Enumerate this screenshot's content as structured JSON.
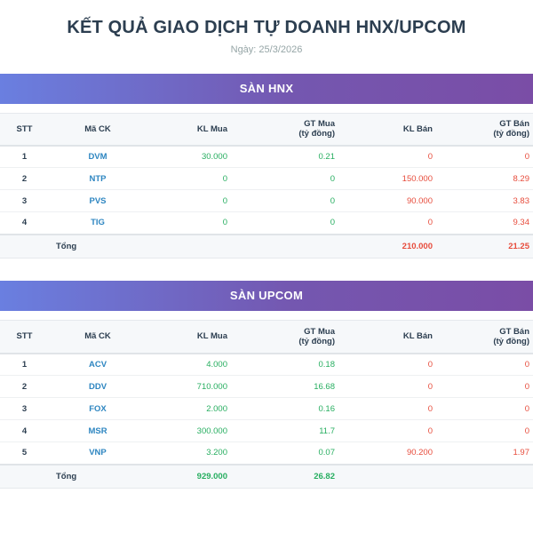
{
  "title": "KẾT QUẢ GIAO DỊCH TỰ DOANH HNX/UPCOM",
  "date": "Ngày: 25/3/2026",
  "columns": {
    "stt": "STT",
    "code": "Mã CK",
    "kl_mua": "KL Mua",
    "gt_mua": "GT Mua\n(tỷ đồng)",
    "kl_ban": "KL Bán",
    "gt_ban": "GT Bán\n(tỷ đồng)"
  },
  "total_label": "Tổng",
  "colors": {
    "buy": "#27ae60",
    "sell": "#e74c3c",
    "code": "#2e86c1",
    "header_start": "#6a7fe0",
    "header_end": "#7a4da6"
  },
  "sections": [
    {
      "name": "SÀN HNX",
      "rows": [
        {
          "stt": "1",
          "code": "DVM",
          "kl_mua": "30.000",
          "gt_mua": "0.21",
          "kl_ban": "0",
          "gt_ban": "0"
        },
        {
          "stt": "2",
          "code": "NTP",
          "kl_mua": "0",
          "gt_mua": "0",
          "kl_ban": "150.000",
          "gt_ban": "8.29"
        },
        {
          "stt": "3",
          "code": "PVS",
          "kl_mua": "0",
          "gt_mua": "0",
          "kl_ban": "90.000",
          "gt_ban": "3.83"
        },
        {
          "stt": "4",
          "code": "TIG",
          "kl_mua": "0",
          "gt_mua": "0",
          "kl_ban": "0",
          "gt_ban": "9.34"
        }
      ],
      "total": {
        "kl_mua": "",
        "gt_mua": "",
        "kl_ban": "210.000",
        "gt_ban": "21.25"
      }
    },
    {
      "name": "SÀN UPCOM",
      "rows": [
        {
          "stt": "1",
          "code": "ACV",
          "kl_mua": "4.000",
          "gt_mua": "0.18",
          "kl_ban": "0",
          "gt_ban": "0"
        },
        {
          "stt": "2",
          "code": "DDV",
          "kl_mua": "710.000",
          "gt_mua": "16.68",
          "kl_ban": "0",
          "gt_ban": "0"
        },
        {
          "stt": "3",
          "code": "FOX",
          "kl_mua": "2.000",
          "gt_mua": "0.16",
          "kl_ban": "0",
          "gt_ban": "0"
        },
        {
          "stt": "4",
          "code": "MSR",
          "kl_mua": "300.000",
          "gt_mua": "11.7",
          "kl_ban": "0",
          "gt_ban": "0"
        },
        {
          "stt": "5",
          "code": "VNP",
          "kl_mua": "3.200",
          "gt_mua": "0.07",
          "kl_ban": "90.200",
          "gt_ban": "1.97"
        }
      ],
      "total": {
        "kl_mua": "929.000",
        "gt_mua": "26.82",
        "kl_ban": "",
        "gt_ban": ""
      }
    }
  ]
}
